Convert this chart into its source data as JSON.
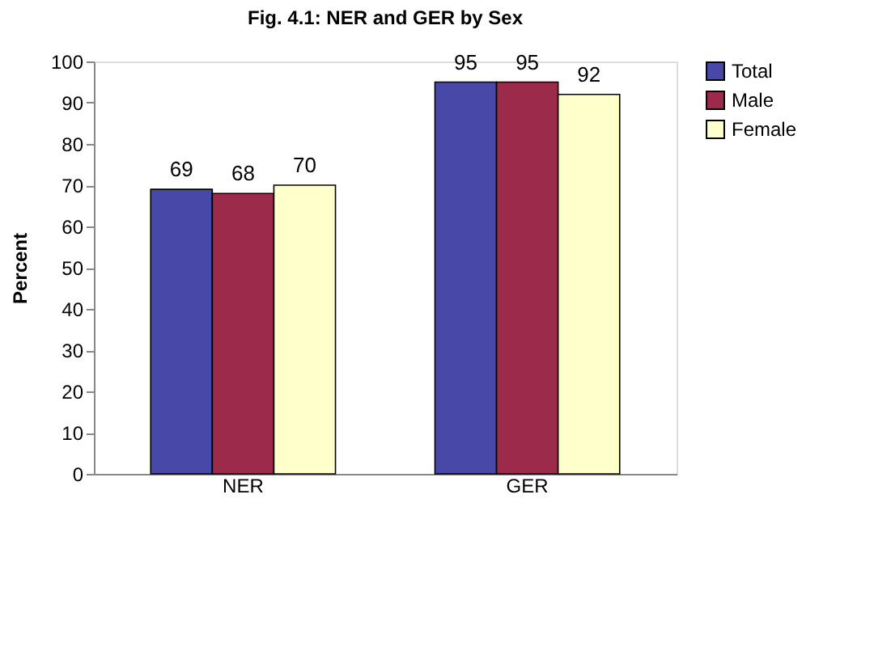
{
  "chart_data": {
    "type": "bar",
    "title": "Fig. 4.1: NER and GER by Sex",
    "ylabel": "Percent",
    "categories": [
      "NER",
      "GER"
    ],
    "series": [
      {
        "name": "Total",
        "color": "#4848a8",
        "values": [
          69,
          95
        ]
      },
      {
        "name": "Male",
        "color": "#9c2a4a",
        "values": [
          68,
          95
        ]
      },
      {
        "name": "Female",
        "color": "#ffffcc",
        "values": [
          70,
          92
        ]
      }
    ],
    "ylim": [
      0,
      100
    ],
    "yticks": [
      0,
      10,
      20,
      30,
      40,
      50,
      60,
      70,
      80,
      90,
      100
    ],
    "grid": false,
    "legend": "right",
    "data_labels": true
  }
}
